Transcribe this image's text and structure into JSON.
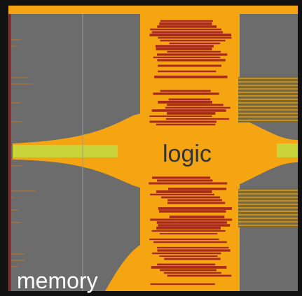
{
  "labels": {
    "logic": "logic",
    "memory": "memory"
  }
}
